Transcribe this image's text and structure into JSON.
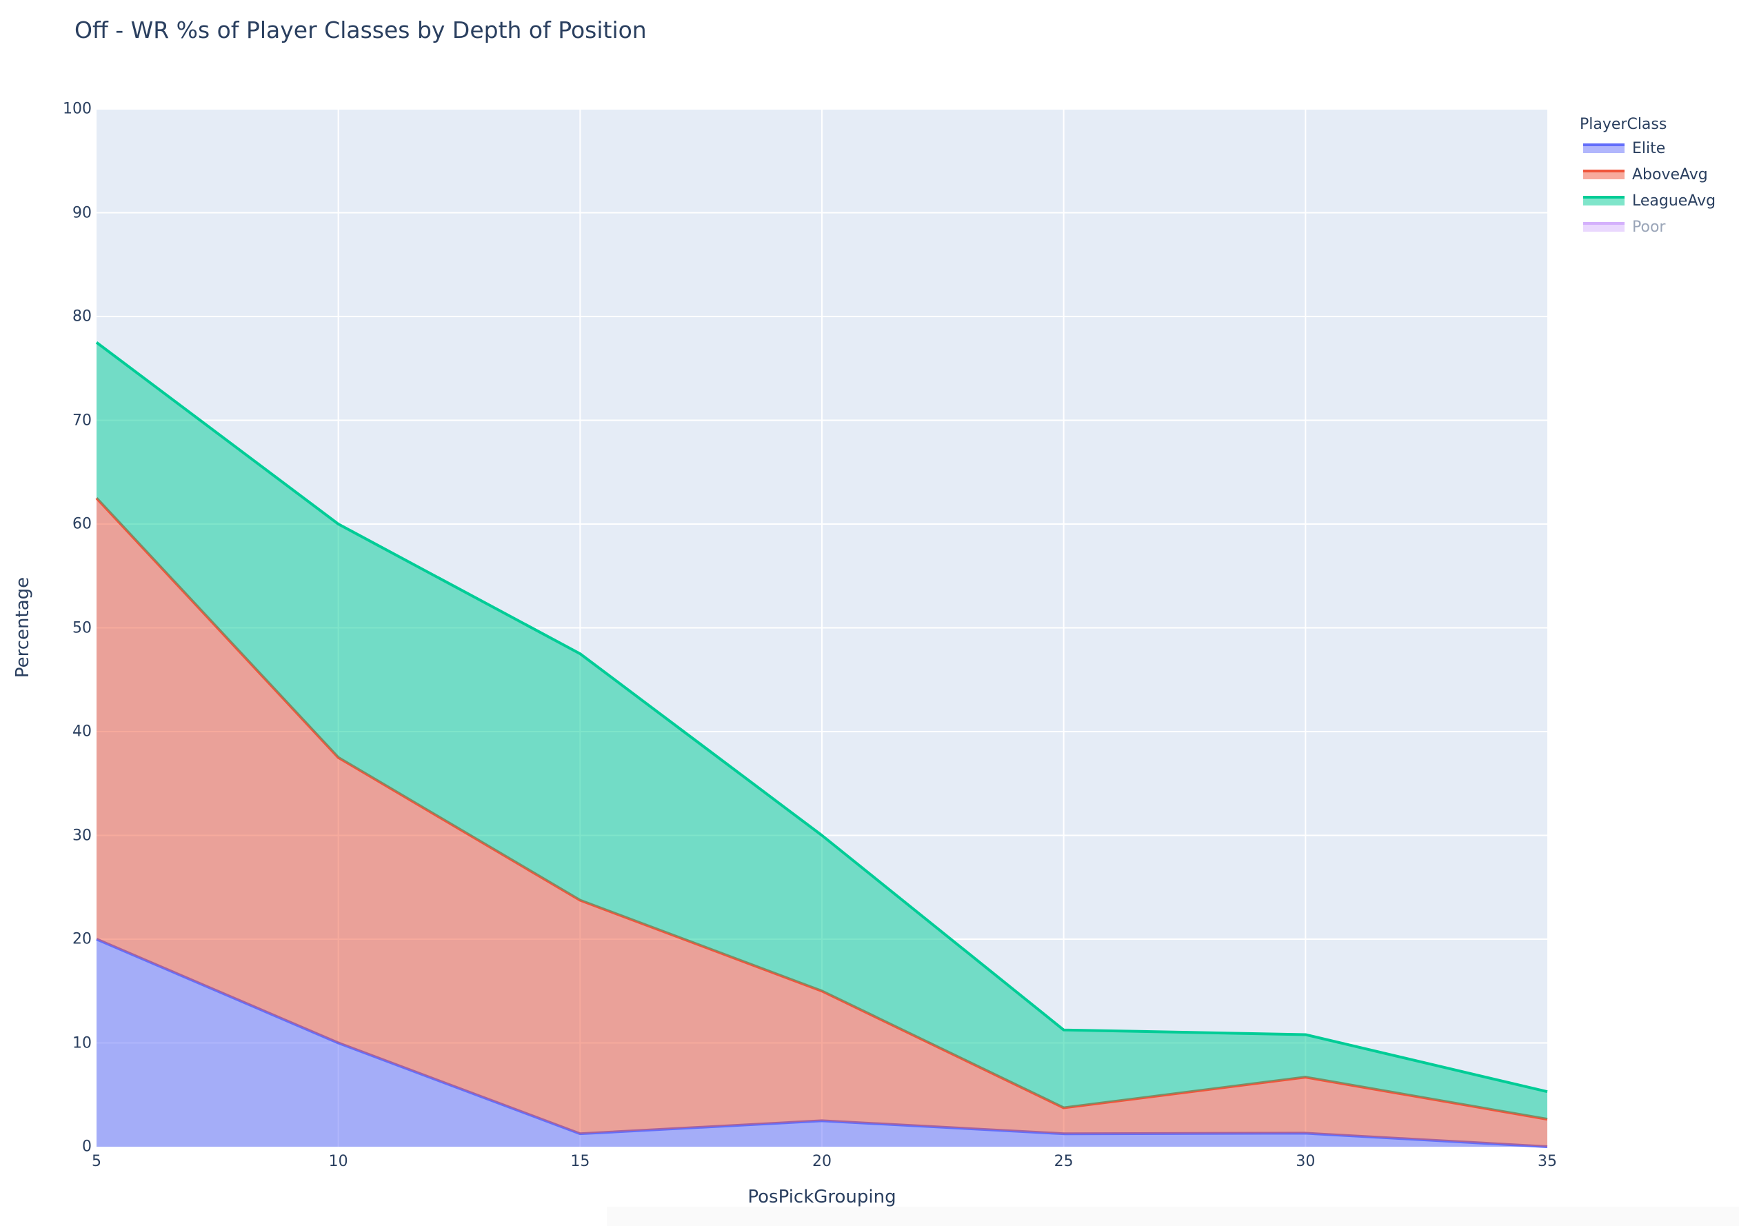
{
  "title": "Off - WR %s of Player Classes by Depth of Position",
  "xaxis": {
    "title": "PosPickGrouping",
    "ticks": [
      "5",
      "10",
      "15",
      "20",
      "25",
      "30",
      "35"
    ]
  },
  "yaxis": {
    "title": "Percentage",
    "ticks": [
      "0",
      "10",
      "20",
      "30",
      "40",
      "50",
      "60",
      "70",
      "80",
      "90",
      "100"
    ]
  },
  "legend": {
    "title": "PlayerClass",
    "items": [
      {
        "label": "Elite",
        "line_color": "#636efa",
        "fill_color": "rgba(99,110,250,0.5)",
        "visible": true
      },
      {
        "label": "AboveAvg",
        "line_color": "#EF553B",
        "fill_color": "rgba(239,85,59,0.5)",
        "visible": true
      },
      {
        "label": "LeagueAvg",
        "line_color": "#00cc96",
        "fill_color": "rgba(0,204,150,0.5)",
        "visible": true
      },
      {
        "label": "Poor",
        "line_color": "#ab63fa",
        "fill_color": "rgba(171,99,250,0.5)",
        "visible": false
      }
    ]
  },
  "colors": {
    "plot_bg": "#E5ECF6",
    "grid": "#ffffff",
    "text": "#2a3f5f"
  },
  "chart_data": {
    "type": "area",
    "stacked": true,
    "title": "Off - WR %s of Player Classes by Depth of Position",
    "xlabel": "PosPickGrouping",
    "ylabel": "Percentage",
    "x": [
      5,
      10,
      15,
      20,
      25,
      30,
      35
    ],
    "xlim": [
      5,
      35
    ],
    "ylim": [
      0,
      100
    ],
    "grid": true,
    "legend_title": "PlayerClass",
    "legend_position": "right",
    "series": [
      {
        "name": "Elite",
        "values": [
          20.0,
          10.0,
          1.25,
          2.5,
          1.25,
          1.3,
          0.0
        ]
      },
      {
        "name": "AboveAvg",
        "values": [
          42.5,
          27.5,
          22.5,
          12.5,
          2.5,
          5.4,
          2.65
        ]
      },
      {
        "name": "LeagueAvg",
        "values": [
          15.0,
          22.5,
          23.75,
          15.0,
          7.5,
          4.1,
          2.65
        ]
      },
      {
        "name": "Poor",
        "values": [],
        "visible": "legendonly"
      }
    ],
    "cumulative_tops": {
      "Elite": [
        20.0,
        10.0,
        1.25,
        2.5,
        1.25,
        1.3,
        0.0
      ],
      "AboveAvg": [
        62.5,
        37.5,
        23.75,
        15.0,
        3.75,
        6.7,
        2.65
      ],
      "LeagueAvg": [
        77.5,
        60.0,
        47.5,
        30.0,
        11.25,
        10.8,
        5.3
      ]
    }
  }
}
